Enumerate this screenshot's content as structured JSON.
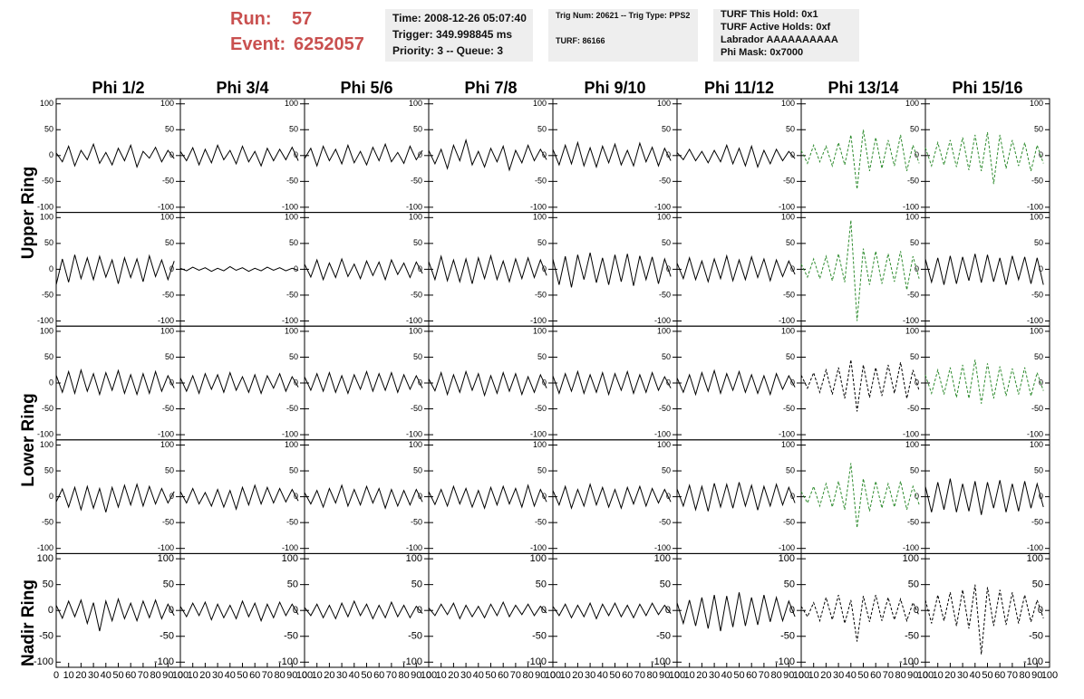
{
  "header": {
    "run_label": "Run:",
    "run": "57",
    "event_label": "Event:",
    "event": "6252057",
    "info1": [
      "Time: 2008-12-26 05:07:40",
      "Trigger: 349.998845 ms",
      "Priority: 3 -- Queue: 3"
    ],
    "info2": [
      "Trig Num: 20621 -- Trig Type: PPS2",
      "TURF: 86166"
    ],
    "info3": [
      "TURF This Hold: 0x1",
      "TURF Active Holds: 0xf",
      "Labrador AAAAAAAAAA",
      "Phi Mask: 0x7000"
    ]
  },
  "chart_data": {
    "type": "line",
    "columns": [
      "Phi 1/2",
      "Phi 3/4",
      "Phi 5/6",
      "Phi 7/8",
      "Phi 9/10",
      "Phi 11/12",
      "Phi 13/14",
      "Phi 15/16"
    ],
    "row_labels": [
      "Upper Ring",
      "Lower Ring",
      "Nadir Ring"
    ],
    "x": [
      0,
      5,
      10,
      15,
      20,
      25,
      30,
      35,
      40,
      45,
      50,
      55,
      60,
      65,
      70,
      75,
      80,
      85,
      90,
      95
    ],
    "xlim": [
      0,
      100
    ],
    "xticks": [
      0,
      10,
      20,
      30,
      40,
      50,
      60,
      70,
      80,
      90,
      100
    ],
    "ylim": [
      -110,
      110
    ],
    "yticks": [
      -100,
      -50,
      0,
      50,
      100
    ],
    "series": [
      {
        "color": "#000000",
        "dashed": false,
        "values": [
          5,
          -12,
          18,
          -20,
          10,
          -8,
          22,
          -15,
          6,
          -18,
          14,
          -10,
          20,
          -22,
          8,
          -5,
          16,
          -12,
          10,
          -6
        ]
      },
      {
        "color": "#000000",
        "dashed": false,
        "values": [
          8,
          -10,
          15,
          -18,
          12,
          -14,
          20,
          -8,
          10,
          -16,
          18,
          -12,
          8,
          -20,
          14,
          -10,
          12,
          -8,
          16,
          -10
        ]
      },
      {
        "color": "#000000",
        "dashed": false,
        "values": [
          -6,
          14,
          -20,
          18,
          -10,
          12,
          -16,
          20,
          -14,
          8,
          -18,
          16,
          -10,
          22,
          -12,
          6,
          -15,
          18,
          -8,
          10
        ]
      },
      {
        "color": "#000000",
        "dashed": false,
        "values": [
          10,
          -16,
          12,
          -25,
          20,
          -10,
          30,
          -18,
          8,
          -22,
          14,
          -12,
          18,
          -28,
          10,
          -14,
          20,
          -10,
          12,
          -8
        ]
      },
      {
        "color": "#000000",
        "dashed": false,
        "values": [
          12,
          -18,
          20,
          -16,
          25,
          -20,
          15,
          -22,
          18,
          -14,
          22,
          -18,
          10,
          -20,
          24,
          -12,
          16,
          -20,
          14,
          -10
        ]
      },
      {
        "color": "#000000",
        "dashed": false,
        "values": [
          6,
          -8,
          12,
          -10,
          8,
          -14,
          10,
          -12,
          20,
          -16,
          14,
          -20,
          18,
          -22,
          10,
          -16,
          12,
          -10,
          8,
          -6
        ]
      },
      {
        "color": "#2e8b2e",
        "dashed": true,
        "values": [
          10,
          -15,
          20,
          -12,
          18,
          -20,
          25,
          -18,
          40,
          -65,
          50,
          -30,
          35,
          -25,
          30,
          -20,
          40,
          -30,
          20,
          -15
        ]
      },
      {
        "color": "#2e8b2e",
        "dashed": true,
        "values": [
          15,
          -20,
          25,
          -18,
          30,
          -22,
          35,
          -28,
          40,
          -30,
          45,
          -55,
          40,
          -25,
          30,
          -20,
          25,
          -30,
          20,
          -15
        ]
      },
      {
        "color": "#000000",
        "dashed": false,
        "values": [
          -30,
          20,
          -25,
          28,
          -18,
          22,
          -20,
          25,
          -15,
          18,
          -28,
          22,
          -16,
          20,
          -24,
          26,
          -14,
          18,
          -20,
          16
        ]
      },
      {
        "color": "#000000",
        "dashed": false,
        "values": [
          2,
          -3,
          4,
          -2,
          3,
          -4,
          2,
          -3,
          5,
          -2,
          3,
          -4,
          2,
          -3,
          4,
          -2,
          3,
          -3,
          2,
          -2
        ]
      },
      {
        "color": "#000000",
        "dashed": false,
        "values": [
          10,
          -15,
          18,
          -20,
          12,
          -16,
          20,
          -14,
          10,
          -18,
          16,
          -12,
          14,
          -20,
          18,
          -10,
          12,
          -16,
          14,
          -8
        ]
      },
      {
        "color": "#000000",
        "dashed": false,
        "values": [
          15,
          -20,
          25,
          -22,
          18,
          -24,
          20,
          -28,
          22,
          -18,
          26,
          -20,
          16,
          -24,
          20,
          -18,
          22,
          -16,
          18,
          -12
        ]
      },
      {
        "color": "#000000",
        "dashed": false,
        "values": [
          20,
          -30,
          25,
          -35,
          28,
          -20,
          32,
          -26,
          22,
          -30,
          28,
          -24,
          30,
          -32,
          26,
          -20,
          24,
          -28,
          20,
          -14
        ]
      },
      {
        "color": "#000000",
        "dashed": false,
        "values": [
          12,
          -18,
          22,
          -20,
          16,
          -24,
          20,
          -18,
          26,
          -22,
          18,
          -20,
          24,
          -16,
          20,
          -22,
          18,
          -14,
          16,
          -10
        ]
      },
      {
        "color": "#2e8b2e",
        "dashed": true,
        "values": [
          10,
          -15,
          20,
          -18,
          25,
          -22,
          30,
          -25,
          95,
          -100,
          40,
          -30,
          35,
          -28,
          30,
          -24,
          35,
          -40,
          25,
          -18
        ]
      },
      {
        "color": "#000000",
        "dashed": false,
        "values": [
          20,
          -25,
          22,
          -30,
          26,
          -28,
          24,
          -22,
          30,
          -26,
          28,
          -24,
          22,
          -30,
          26,
          -20,
          24,
          -28,
          22,
          -30
        ]
      },
      {
        "color": "#000000",
        "dashed": false,
        "values": [
          15,
          -18,
          22,
          -20,
          25,
          -16,
          18,
          -22,
          20,
          -14,
          24,
          -20,
          16,
          -22,
          18,
          -20,
          22,
          -16,
          14,
          -10
        ]
      },
      {
        "color": "#000000",
        "dashed": false,
        "values": [
          10,
          -16,
          14,
          -20,
          18,
          -12,
          16,
          -18,
          20,
          -14,
          12,
          -18,
          16,
          -20,
          14,
          -10,
          18,
          -16,
          12,
          -8
        ]
      },
      {
        "color": "#000000",
        "dashed": false,
        "values": [
          12,
          -14,
          18,
          -16,
          20,
          -18,
          14,
          -20,
          16,
          -12,
          22,
          -16,
          18,
          -14,
          20,
          -18,
          16,
          -12,
          14,
          -10
        ]
      },
      {
        "color": "#000000",
        "dashed": false,
        "values": [
          8,
          -15,
          20,
          -22,
          16,
          -18,
          22,
          -14,
          18,
          -24,
          14,
          -20,
          20,
          -16,
          18,
          -22,
          12,
          -18,
          16,
          -10
        ]
      },
      {
        "color": "#000000",
        "dashed": false,
        "values": [
          14,
          -20,
          18,
          -16,
          22,
          -20,
          16,
          -18,
          20,
          -22,
          18,
          -14,
          22,
          -20,
          16,
          -18,
          20,
          -14,
          12,
          -10
        ]
      },
      {
        "color": "#000000",
        "dashed": false,
        "values": [
          10,
          -18,
          16,
          -22,
          20,
          -16,
          24,
          -20,
          18,
          -14,
          22,
          -18,
          16,
          -20,
          14,
          -22,
          18,
          -12,
          14,
          -8
        ]
      },
      {
        "color": "#000000",
        "dashed": true,
        "values": [
          15,
          -10,
          20,
          -18,
          25,
          -22,
          30,
          -30,
          45,
          -55,
          35,
          -28,
          30,
          -25,
          35,
          -20,
          40,
          -30,
          25,
          -15
        ]
      },
      {
        "color": "#2e8b2e",
        "dashed": true,
        "values": [
          15,
          -20,
          25,
          -22,
          30,
          -28,
          35,
          -30,
          45,
          -40,
          38,
          -30,
          32,
          -25,
          28,
          -22,
          30,
          -25,
          20,
          -15
        ]
      },
      {
        "color": "#000000",
        "dashed": false,
        "values": [
          -10,
          15,
          -20,
          18,
          -25,
          20,
          -22,
          16,
          -30,
          18,
          -20,
          22,
          -16,
          24,
          -18,
          20,
          -14,
          16,
          -12,
          10
        ]
      },
      {
        "color": "#000000",
        "dashed": false,
        "values": [
          10,
          -12,
          16,
          -14,
          8,
          -18,
          14,
          -20,
          12,
          -24,
          18,
          -16,
          22,
          -14,
          18,
          -12,
          16,
          -10,
          14,
          -8
        ]
      },
      {
        "color": "#000000",
        "dashed": false,
        "values": [
          8,
          -14,
          12,
          -20,
          16,
          -12,
          22,
          -18,
          14,
          -16,
          20,
          -12,
          16,
          -22,
          14,
          -18,
          12,
          -16,
          14,
          -10
        ]
      },
      {
        "color": "#000000",
        "dashed": false,
        "values": [
          10,
          -15,
          14,
          -18,
          20,
          -14,
          16,
          -20,
          12,
          -22,
          18,
          -16,
          20,
          -14,
          16,
          -20,
          22,
          -18,
          14,
          -10
        ]
      },
      {
        "color": "#000000",
        "dashed": false,
        "values": [
          12,
          -16,
          20,
          -22,
          14,
          -18,
          24,
          -16,
          18,
          -20,
          14,
          -22,
          18,
          -14,
          20,
          -18,
          16,
          -12,
          14,
          -10
        ]
      },
      {
        "color": "#000000",
        "dashed": false,
        "values": [
          15,
          -18,
          22,
          -25,
          20,
          -28,
          26,
          -20,
          24,
          -22,
          28,
          -18,
          22,
          -26,
          20,
          -18,
          24,
          -16,
          18,
          -12
        ]
      },
      {
        "color": "#2e8b2e",
        "dashed": true,
        "values": [
          10,
          -12,
          20,
          -18,
          25,
          -20,
          30,
          -25,
          65,
          -60,
          35,
          -28,
          30,
          -22,
          25,
          -20,
          30,
          -25,
          20,
          -15
        ]
      },
      {
        "color": "#000000",
        "dashed": false,
        "values": [
          20,
          -30,
          28,
          -25,
          35,
          -30,
          25,
          -28,
          30,
          -35,
          28,
          -22,
          32,
          -30,
          25,
          -28,
          30,
          -22,
          25,
          -20
        ]
      },
      {
        "color": "#000000",
        "dashed": false,
        "values": [
          10,
          -15,
          18,
          -12,
          20,
          -25,
          15,
          -40,
          18,
          -20,
          22,
          -16,
          14,
          -20,
          18,
          -14,
          20,
          -16,
          12,
          -10
        ]
      },
      {
        "color": "#000000",
        "dashed": false,
        "values": [
          8,
          -12,
          14,
          -10,
          16,
          -18,
          12,
          -14,
          10,
          -16,
          18,
          -12,
          14,
          -20,
          12,
          -14,
          16,
          -10,
          12,
          -8
        ]
      },
      {
        "color": "#000000",
        "dashed": false,
        "values": [
          6,
          -10,
          12,
          -14,
          10,
          -16,
          14,
          -12,
          18,
          -10,
          12,
          -16,
          10,
          -14,
          16,
          -12,
          10,
          -14,
          8,
          -6
        ]
      },
      {
        "color": "#000000",
        "dashed": false,
        "values": [
          5,
          -10,
          12,
          -8,
          14,
          -16,
          10,
          -12,
          8,
          -14,
          12,
          -10,
          16,
          -12,
          10,
          -8,
          12,
          -10,
          8,
          -5
        ]
      },
      {
        "color": "#000000",
        "dashed": false,
        "values": [
          8,
          -10,
          12,
          -14,
          10,
          -12,
          14,
          -16,
          12,
          -10,
          14,
          -12,
          10,
          -14,
          12,
          -10,
          14,
          -8,
          10,
          -6
        ]
      },
      {
        "color": "#000000",
        "dashed": false,
        "values": [
          15,
          -25,
          20,
          -30,
          25,
          -35,
          30,
          -40,
          28,
          -32,
          35,
          -30,
          25,
          -28,
          30,
          -22,
          25,
          -20,
          18,
          -12
        ]
      },
      {
        "color": "#000000",
        "dashed": true,
        "values": [
          8,
          -12,
          15,
          -20,
          25,
          -18,
          30,
          -25,
          20,
          -60,
          28,
          -22,
          30,
          -20,
          25,
          -18,
          22,
          -20,
          15,
          -10
        ]
      },
      {
        "color": "#000000",
        "dashed": true,
        "values": [
          20,
          -25,
          30,
          -20,
          35,
          -30,
          40,
          -35,
          50,
          -85,
          45,
          -30,
          40,
          -28,
          35,
          -25,
          30,
          -22,
          20,
          -15
        ]
      }
    ]
  }
}
